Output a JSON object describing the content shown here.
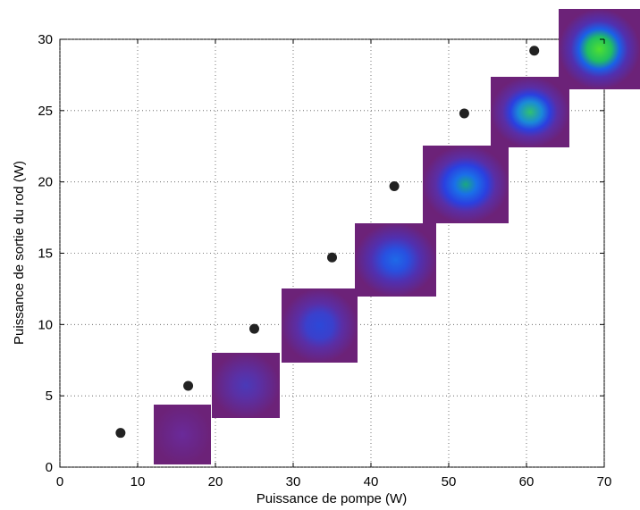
{
  "chart_data": {
    "type": "scatter",
    "xlabel": "Puissance de pompe (W)",
    "ylabel": "Puissance de sortie du rod (W)",
    "x": [
      7.8,
      16.5,
      25,
      35,
      43,
      52,
      61
    ],
    "values": [
      2.4,
      5.7,
      9.7,
      14.7,
      19.7,
      24.8,
      29.2
    ],
    "color": "#222222",
    "xlim": [
      0,
      70
    ],
    "xticks": [
      0,
      10,
      20,
      30,
      40,
      50,
      60,
      70
    ],
    "ylim": [
      0,
      30
    ],
    "yticks": [
      0,
      5,
      10,
      15,
      20,
      25,
      30
    ],
    "grid": true
  }
}
